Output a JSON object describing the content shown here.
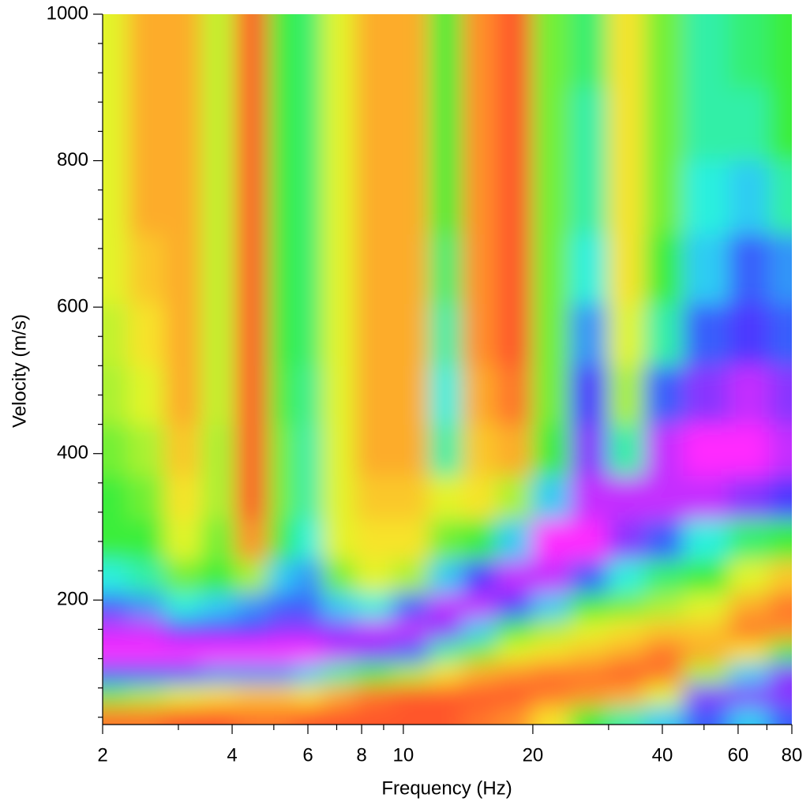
{
  "chart_data": {
    "type": "heatmap",
    "x_label": "Frequency (Hz)",
    "y_label": "Velocity (m/s)",
    "xscale": "log",
    "xlim": [
      2,
      80
    ],
    "ylim": [
      30,
      1000
    ],
    "xticks": [
      2,
      4,
      6,
      8,
      10,
      20,
      40,
      60,
      80
    ],
    "xminorticks": [
      3,
      5,
      7,
      9,
      30,
      50,
      70
    ],
    "yticks": [
      200,
      400,
      600,
      800,
      1000
    ],
    "yminorticks": [
      40,
      80,
      120,
      160,
      240,
      280,
      320,
      360,
      440,
      480,
      520,
      560,
      640,
      680,
      720,
      760,
      840,
      880,
      920,
      960
    ],
    "colorscale": [
      "#ff3a2a",
      "#ff9a2a",
      "#f5f52a",
      "#3aee3a",
      "#2af0f0",
      "#3a3aff",
      "#ff2aff"
    ],
    "x": [
      2.1,
      2.5,
      3.1,
      3.7,
      4.5,
      5.2,
      6,
      7,
      8.5,
      10.5,
      12.5,
      15,
      18,
      22,
      27,
      33,
      40,
      50,
      65,
      77
    ],
    "y": [
      40,
      70,
      100,
      130,
      160,
      190,
      230,
      280,
      340,
      400,
      480,
      560,
      650,
      750,
      850,
      950
    ],
    "values": [
      [
        0.1,
        0.45,
        0.8,
        1.0,
        0.95,
        0.8,
        0.65,
        0.5,
        0.5,
        0.45,
        0.4,
        0.38,
        0.35,
        0.35,
        0.35,
        0.35
      ],
      [
        0.1,
        0.4,
        0.8,
        1.0,
        0.95,
        0.75,
        0.6,
        0.5,
        0.45,
        0.4,
        0.35,
        0.3,
        0.25,
        0.2,
        0.2,
        0.2
      ],
      [
        0.05,
        0.35,
        0.8,
        1.0,
        0.85,
        0.65,
        0.45,
        0.35,
        0.3,
        0.25,
        0.2,
        0.2,
        0.2,
        0.2,
        0.2,
        0.2
      ],
      [
        0.05,
        0.3,
        0.75,
        1.0,
        0.85,
        0.7,
        0.5,
        0.45,
        0.4,
        0.4,
        0.38,
        0.38,
        0.38,
        0.38,
        0.38,
        0.38
      ],
      [
        0.1,
        0.25,
        0.75,
        1.0,
        0.85,
        0.75,
        0.4,
        0.15,
        0.05,
        0.05,
        0.05,
        0.05,
        0.05,
        0.05,
        0.05,
        0.05
      ],
      [
        0.1,
        0.25,
        0.75,
        1.0,
        0.9,
        0.8,
        0.7,
        0.5,
        0.45,
        0.45,
        0.48,
        0.5,
        0.5,
        0.5,
        0.5,
        0.5
      ],
      [
        0.05,
        0.3,
        0.7,
        1.0,
        0.9,
        0.8,
        0.75,
        0.65,
        0.6,
        0.6,
        0.58,
        0.55,
        0.55,
        0.55,
        0.55,
        0.55
      ],
      [
        0.05,
        0.2,
        0.6,
        0.95,
        0.9,
        0.7,
        0.45,
        0.35,
        0.35,
        0.35,
        0.35,
        0.35,
        0.35,
        0.35,
        0.35,
        0.35
      ],
      [
        0.05,
        0.1,
        0.5,
        0.9,
        0.95,
        0.65,
        0.35,
        0.3,
        0.25,
        0.2,
        0.2,
        0.2,
        0.2,
        0.2,
        0.2,
        0.2
      ],
      [
        0.05,
        0.05,
        0.4,
        0.8,
        0.95,
        0.8,
        0.4,
        0.3,
        0.25,
        0.2,
        0.2,
        0.2,
        0.2,
        0.2,
        0.2,
        0.2
      ],
      [
        0.05,
        0.05,
        0.3,
        0.6,
        0.9,
        0.95,
        0.7,
        0.45,
        0.35,
        0.6,
        0.65,
        0.6,
        0.55,
        0.5,
        0.5,
        0.5
      ],
      [
        0.1,
        0.05,
        0.2,
        0.45,
        0.7,
        0.95,
        0.85,
        0.5,
        0.3,
        0.25,
        0.2,
        0.15,
        0.15,
        0.15,
        0.15,
        0.15
      ],
      [
        0.15,
        0.05,
        0.15,
        0.35,
        0.5,
        0.85,
        0.95,
        0.7,
        0.4,
        0.2,
        0.1,
        0.05,
        0.05,
        0.05,
        0.05,
        0.05
      ],
      [
        0.3,
        0.1,
        0.1,
        0.3,
        0.4,
        0.7,
        0.95,
        1.0,
        0.7,
        0.5,
        0.45,
        0.45,
        0.45,
        0.45,
        0.45,
        0.45
      ],
      [
        0.5,
        0.15,
        0.1,
        0.25,
        0.35,
        0.5,
        0.8,
        1.0,
        0.95,
        0.9,
        0.85,
        0.75,
        0.65,
        0.6,
        0.6,
        0.55
      ],
      [
        0.6,
        0.2,
        0.05,
        0.2,
        0.3,
        0.45,
        0.65,
        0.9,
        0.95,
        0.6,
        0.4,
        0.35,
        0.3,
        0.3,
        0.3,
        0.3
      ],
      [
        0.7,
        0.35,
        0.1,
        0.1,
        0.25,
        0.4,
        0.55,
        0.8,
        0.95,
        0.95,
        0.8,
        0.6,
        0.5,
        0.45,
        0.45,
        0.45
      ],
      [
        0.8,
        0.9,
        0.4,
        0.2,
        0.25,
        0.35,
        0.5,
        0.65,
        0.95,
        1.0,
        0.9,
        0.8,
        0.7,
        0.65,
        0.6,
        0.6
      ],
      [
        0.7,
        0.9,
        0.7,
        0.3,
        0.1,
        0.2,
        0.35,
        0.55,
        0.9,
        1.0,
        0.95,
        0.85,
        0.8,
        0.7,
        0.6,
        0.55
      ],
      [
        0.8,
        0.9,
        0.9,
        0.5,
        0.15,
        0.1,
        0.25,
        0.5,
        0.85,
        0.95,
        0.9,
        0.8,
        0.75,
        0.6,
        0.5,
        0.5
      ]
    ]
  }
}
